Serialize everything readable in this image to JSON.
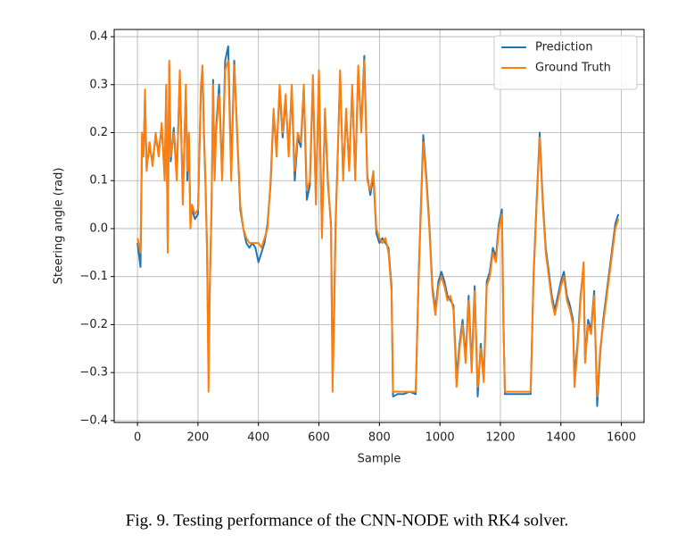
{
  "chart_data": {
    "type": "line",
    "xlabel": "Sample",
    "ylabel": "Steering angle (rad)",
    "caption": "Fig. 9.  Testing performance of the CNN-NODE with RK4 solver.",
    "xlim": [
      -77,
      1675
    ],
    "ylim": [
      -0.404,
      0.415
    ],
    "xticks": [
      0,
      200,
      400,
      600,
      800,
      1000,
      1200,
      1400,
      1600
    ],
    "yticks": [
      0.4,
      0.3,
      0.2,
      0.1,
      {
        "value": 0,
        "label": "0.0"
      },
      {
        "value": -0.1,
        "label": "−0.1"
      },
      {
        "value": -0.2,
        "label": "−0.2"
      },
      {
        "value": -0.3,
        "label": "−0.3"
      },
      {
        "value": -0.4,
        "label": "−0.4"
      }
    ],
    "grid": true,
    "legend": "upper right",
    "x": [
      0,
      10,
      15,
      20,
      25,
      30,
      40,
      50,
      60,
      70,
      80,
      90,
      95,
      100,
      105,
      110,
      120,
      130,
      140,
      150,
      160,
      165,
      170,
      175,
      180,
      190,
      200,
      210,
      215,
      220,
      225,
      230,
      235,
      240,
      245,
      250,
      255,
      260,
      270,
      280,
      290,
      300,
      310,
      320,
      330,
      340,
      350,
      360,
      370,
      380,
      390,
      400,
      410,
      420,
      430,
      440,
      450,
      460,
      470,
      480,
      490,
      500,
      510,
      520,
      530,
      540,
      550,
      560,
      570,
      580,
      590,
      600,
      610,
      620,
      630,
      640,
      645,
      650,
      655,
      660,
      670,
      680,
      690,
      700,
      710,
      720,
      730,
      740,
      750,
      760,
      770,
      780,
      790,
      800,
      810,
      820,
      830,
      840,
      845,
      860,
      880,
      900,
      920,
      930,
      945,
      955,
      965,
      975,
      985,
      995,
      1005,
      1015,
      1025,
      1035,
      1045,
      1055,
      1065,
      1075,
      1085,
      1095,
      1105,
      1115,
      1125,
      1135,
      1145,
      1155,
      1165,
      1175,
      1185,
      1195,
      1205,
      1210,
      1215,
      1240,
      1270,
      1300,
      1310,
      1320,
      1330,
      1340,
      1350,
      1360,
      1370,
      1380,
      1390,
      1400,
      1410,
      1420,
      1430,
      1440,
      1445,
      1455,
      1465,
      1475,
      1480,
      1490,
      1500,
      1510,
      1520,
      1530,
      1540,
      1550,
      1560,
      1570,
      1580,
      1590
    ],
    "series": [
      {
        "name": "Prediction",
        "color": "#1f77b4",
        "values": [
          -0.03,
          -0.08,
          0.18,
          0.16,
          0.27,
          0.13,
          0.17,
          0.14,
          0.19,
          0.16,
          0.21,
          0.11,
          0.29,
          -0.03,
          0.34,
          0.14,
          0.21,
          0.11,
          0.32,
          0.06,
          0.29,
          0.1,
          0.19,
          0.02,
          0.04,
          0.02,
          0.03,
          0.29,
          0.33,
          0.19,
          0.09,
          -0.04,
          -0.3,
          -0.09,
          0.04,
          0.31,
          0.11,
          0.21,
          0.3,
          0.11,
          0.35,
          0.38,
          0.12,
          0.35,
          0.19,
          0.04,
          0.0,
          -0.03,
          -0.04,
          -0.03,
          -0.04,
          -0.07,
          -0.05,
          -0.03,
          0.01,
          0.09,
          0.24,
          0.16,
          0.29,
          0.19,
          0.27,
          0.16,
          0.29,
          0.1,
          0.19,
          0.17,
          0.29,
          0.06,
          0.09,
          0.31,
          0.06,
          0.32,
          -0.01,
          0.24,
          0.09,
          0.01,
          -0.3,
          -0.18,
          0.01,
          0.11,
          0.32,
          0.11,
          0.24,
          0.13,
          0.29,
          0.11,
          0.33,
          0.21,
          0.36,
          0.11,
          0.07,
          0.11,
          -0.01,
          -0.03,
          -0.02,
          -0.03,
          -0.04,
          -0.12,
          -0.35,
          -0.345,
          -0.345,
          -0.34,
          -0.345,
          -0.09,
          0.195,
          0.11,
          0.01,
          -0.12,
          -0.17,
          -0.11,
          -0.09,
          -0.11,
          -0.14,
          -0.15,
          -0.16,
          -0.31,
          -0.24,
          -0.19,
          -0.27,
          -0.14,
          -0.29,
          -0.12,
          -0.35,
          -0.24,
          -0.31,
          -0.11,
          -0.09,
          -0.04,
          -0.06,
          0.01,
          0.04,
          -0.19,
          -0.345,
          -0.345,
          -0.345,
          -0.345,
          -0.09,
          0.06,
          0.2,
          0.06,
          -0.04,
          -0.09,
          -0.14,
          -0.17,
          -0.14,
          -0.11,
          -0.09,
          -0.14,
          -0.16,
          -0.19,
          -0.31,
          -0.24,
          -0.14,
          -0.08,
          -0.27,
          -0.19,
          -0.21,
          -0.13,
          -0.37,
          -0.26,
          -0.19,
          -0.14,
          -0.09,
          -0.04,
          0.01,
          0.03
        ]
      },
      {
        "name": "Ground Truth",
        "color": "#ff7f0e",
        "values": [
          -0.02,
          -0.05,
          0.2,
          0.15,
          0.29,
          0.12,
          0.18,
          0.13,
          0.2,
          0.15,
          0.22,
          0.1,
          0.3,
          -0.05,
          0.35,
          0.15,
          0.2,
          0.1,
          0.33,
          0.05,
          0.3,
          0.12,
          0.2,
          0.0,
          0.05,
          0.03,
          0.04,
          0.3,
          0.34,
          0.2,
          0.1,
          -0.05,
          -0.34,
          -0.1,
          0.05,
          0.3,
          0.1,
          0.2,
          0.28,
          0.1,
          0.33,
          0.35,
          0.1,
          0.34,
          0.2,
          0.05,
          0.0,
          -0.02,
          -0.03,
          -0.03,
          -0.03,
          -0.03,
          -0.04,
          -0.02,
          0.0,
          0.1,
          0.25,
          0.15,
          0.3,
          0.2,
          0.28,
          0.15,
          0.3,
          0.12,
          0.2,
          0.18,
          0.3,
          0.08,
          0.1,
          0.32,
          0.05,
          0.33,
          -0.02,
          0.25,
          0.1,
          0.0,
          -0.34,
          -0.2,
          0.0,
          0.1,
          0.33,
          0.1,
          0.25,
          0.12,
          0.3,
          0.1,
          0.34,
          0.2,
          0.35,
          0.1,
          0.08,
          0.12,
          0.0,
          -0.02,
          -0.03,
          -0.02,
          -0.05,
          -0.13,
          -0.34,
          -0.34,
          -0.34,
          -0.34,
          -0.34,
          -0.1,
          0.18,
          0.1,
          0.0,
          -0.13,
          -0.18,
          -0.12,
          -0.1,
          -0.12,
          -0.15,
          -0.14,
          -0.17,
          -0.33,
          -0.25,
          -0.2,
          -0.28,
          -0.15,
          -0.3,
          -0.13,
          -0.33,
          -0.25,
          -0.32,
          -0.12,
          -0.1,
          -0.05,
          -0.07,
          0.0,
          0.03,
          -0.2,
          -0.34,
          -0.34,
          -0.34,
          -0.34,
          -0.1,
          0.05,
          0.19,
          0.05,
          -0.05,
          -0.1,
          -0.15,
          -0.18,
          -0.15,
          -0.12,
          -0.1,
          -0.15,
          -0.17,
          -0.2,
          -0.33,
          -0.25,
          -0.15,
          -0.07,
          -0.28,
          -0.2,
          -0.22,
          -0.14,
          -0.35,
          -0.25,
          -0.2,
          -0.15,
          -0.1,
          -0.05,
          0.0,
          0.02
        ]
      }
    ]
  }
}
